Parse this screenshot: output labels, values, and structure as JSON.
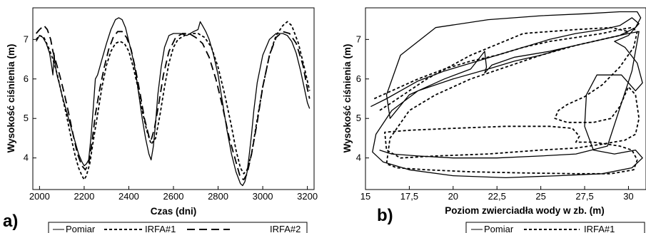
{
  "chart_data": [
    {
      "type": "line",
      "panel": "a)",
      "xlabel": "Czas (dni)",
      "ylabel": "Wysokość ciśnienia (m)",
      "xlim": [
        1970,
        3230
      ],
      "ylim": [
        3.2,
        7.8
      ],
      "xticks": [
        2000,
        2200,
        2400,
        2600,
        2800,
        3000,
        3200
      ],
      "yticks": [
        4,
        5,
        6,
        7
      ],
      "grid": false,
      "legend": "bottom",
      "series": [
        {
          "name": "Pomiar",
          "style": "solid",
          "x": [
            1985,
            2000,
            2015,
            2030,
            2045,
            2055,
            2060,
            2065,
            2070,
            2080,
            2090,
            2100,
            2115,
            2130,
            2145,
            2160,
            2175,
            2190,
            2200,
            2210,
            2220,
            2230,
            2240,
            2250,
            2260,
            2270,
            2280,
            2300,
            2320,
            2340,
            2355,
            2370,
            2385,
            2400,
            2415,
            2430,
            2445,
            2460,
            2475,
            2490,
            2500,
            2510,
            2520,
            2530,
            2545,
            2560,
            2580,
            2600,
            2630,
            2660,
            2690,
            2710,
            2720,
            2730,
            2745,
            2760,
            2780,
            2800,
            2820,
            2840,
            2860,
            2880,
            2900,
            2910,
            2920,
            2930,
            2940,
            2950,
            2960,
            2975,
            3000,
            3030,
            3060,
            3090,
            3110,
            3130,
            3150,
            3170,
            3185,
            3200,
            3210
          ],
          "y": [
            6.95,
            7.1,
            7.05,
            6.9,
            6.65,
            6.3,
            6.1,
            6.65,
            6.35,
            6.05,
            5.85,
            5.6,
            5.3,
            5.0,
            4.7,
            4.4,
            4.1,
            3.9,
            3.8,
            3.85,
            3.95,
            4.5,
            5.2,
            6.0,
            6.1,
            6.3,
            6.5,
            6.9,
            7.25,
            7.5,
            7.55,
            7.5,
            7.3,
            6.95,
            6.6,
            6.2,
            5.6,
            5.0,
            4.5,
            4.1,
            3.95,
            4.3,
            4.9,
            5.6,
            6.3,
            6.8,
            7.1,
            7.15,
            7.15,
            7.1,
            7.2,
            7.25,
            7.45,
            7.35,
            7.2,
            7.0,
            6.6,
            6.1,
            5.4,
            4.7,
            4.1,
            3.65,
            3.35,
            3.3,
            3.4,
            3.65,
            4.1,
            4.6,
            5.2,
            5.9,
            6.6,
            7.0,
            7.15,
            7.15,
            7.1,
            6.95,
            6.65,
            6.2,
            5.8,
            5.4,
            5.25
          ]
        },
        {
          "name": "IRFA#1",
          "style": "dotted",
          "x": [
            1985,
            2000,
            2020,
            2040,
            2060,
            2080,
            2100,
            2120,
            2140,
            2160,
            2175,
            2190,
            2200,
            2210,
            2225,
            2240,
            2260,
            2280,
            2300,
            2320,
            2340,
            2360,
            2380,
            2400,
            2420,
            2440,
            2460,
            2480,
            2500,
            2520,
            2540,
            2560,
            2580,
            2600,
            2620,
            2650,
            2680,
            2710,
            2740,
            2770,
            2800,
            2830,
            2860,
            2880,
            2900,
            2915,
            2930,
            2950,
            2970,
            3000,
            3030,
            3060,
            3090,
            3110,
            3130,
            3160,
            3190,
            3210
          ],
          "y": [
            7.0,
            7.1,
            7.05,
            6.8,
            6.5,
            6.1,
            5.6,
            5.1,
            4.55,
            4.05,
            3.75,
            3.55,
            3.45,
            3.55,
            3.85,
            4.4,
            5.1,
            5.8,
            6.35,
            6.7,
            6.9,
            6.95,
            6.9,
            6.7,
            6.3,
            5.8,
            5.2,
            4.7,
            4.35,
            4.5,
            5.1,
            5.8,
            6.4,
            6.8,
            7.0,
            7.1,
            7.15,
            7.15,
            7.05,
            6.8,
            6.3,
            5.6,
            4.8,
            4.2,
            3.75,
            3.6,
            3.7,
            4.1,
            4.8,
            5.8,
            6.6,
            7.1,
            7.35,
            7.45,
            7.35,
            6.9,
            6.2,
            5.7
          ]
        },
        {
          "name": "IRFA#2",
          "style": "dashed",
          "x": [
            1985,
            2000,
            2020,
            2035,
            2050,
            2060,
            2075,
            2090,
            2110,
            2130,
            2150,
            2170,
            2190,
            2205,
            2220,
            2235,
            2250,
            2270,
            2290,
            2310,
            2330,
            2350,
            2370,
            2390,
            2410,
            2430,
            2450,
            2470,
            2490,
            2500,
            2515,
            2535,
            2555,
            2580,
            2610,
            2640,
            2670,
            2700,
            2730,
            2760,
            2790,
            2820,
            2850,
            2880,
            2900,
            2915,
            2930,
            2950,
            2975,
            3000,
            3030,
            3060,
            3090,
            3120,
            3150,
            3180,
            3200,
            3210
          ],
          "y": [
            7.15,
            7.25,
            7.35,
            7.25,
            7.0,
            6.7,
            6.4,
            6.1,
            5.65,
            5.15,
            4.6,
            4.1,
            3.8,
            3.7,
            3.85,
            4.4,
            5.1,
            5.75,
            6.3,
            6.75,
            7.05,
            7.2,
            7.2,
            7.05,
            6.75,
            6.25,
            5.65,
            5.0,
            4.55,
            4.45,
            4.75,
            5.4,
            6.1,
            6.7,
            7.05,
            7.15,
            7.15,
            7.05,
            6.9,
            6.55,
            6.0,
            5.3,
            4.5,
            3.9,
            3.5,
            3.45,
            3.6,
            4.1,
            4.9,
            5.8,
            6.6,
            7.05,
            7.2,
            7.15,
            6.9,
            6.35,
            5.75,
            5.5
          ]
        }
      ],
      "legend_entries": [
        "Pomiar",
        "IRFA#1",
        "IRFA#2"
      ]
    },
    {
      "type": "line",
      "panel": "b)",
      "xlabel": "Poziom zwierciadła wody w zb. (m)",
      "ylabel": "Wysokość ciśnienia (m)",
      "xlim": [
        15,
        31
      ],
      "ylim": [
        3.2,
        7.8
      ],
      "xticks": [
        "15",
        "17,5",
        "20",
        "22,5",
        "25",
        "27,5",
        "30"
      ],
      "xtick_values": [
        15,
        17.5,
        20,
        22.5,
        25,
        27.5,
        30
      ],
      "yticks": [
        4,
        5,
        6,
        7
      ],
      "grid": false,
      "legend": "bottom",
      "series": [
        {
          "name": "Pomiar",
          "style": "solid",
          "x": [
            15.3,
            16.2,
            17.0,
            18.0,
            19.5,
            21.0,
            22.5,
            24.0,
            25.5,
            27.0,
            28.5,
            29.5,
            30.2,
            30.6,
            30.0,
            29.2,
            29.8,
            30.5,
            30.8,
            30.4,
            29.6,
            28.2,
            27.6,
            27.5,
            28.0,
            29.2,
            30.4,
            30.8,
            30.2,
            28.5,
            26.0,
            23.0,
            20.0,
            17.5,
            16.0,
            15.4,
            15.6,
            16.5,
            18.0,
            20.0,
            22.0,
            23.5,
            25.0,
            26.5,
            28.0,
            29.5,
            30.4,
            30.7,
            30.5,
            29.5,
            27.5,
            25.0,
            22.0,
            19.0,
            17.0,
            16.2,
            16.4,
            17.5,
            19.5,
            21.0,
            21.8,
            21.9,
            21.8,
            22.2,
            23.5,
            25.5,
            27.5,
            29.0,
            30.0,
            30.6,
            30.2,
            28.8,
            27.0,
            25.0,
            22.5,
            20.0,
            18.0,
            16.5,
            15.8
          ],
          "y": [
            5.3,
            5.5,
            5.7,
            5.95,
            6.2,
            6.4,
            6.6,
            6.8,
            7.0,
            7.15,
            7.25,
            7.35,
            7.55,
            7.4,
            7.1,
            6.95,
            6.8,
            6.4,
            5.9,
            5.7,
            6.1,
            6.1,
            5.6,
            4.8,
            4.2,
            4.1,
            4.2,
            4.0,
            3.75,
            3.6,
            3.55,
            3.5,
            3.55,
            3.7,
            3.9,
            4.15,
            4.6,
            5.2,
            5.7,
            6.0,
            6.25,
            6.45,
            6.6,
            6.8,
            6.95,
            7.1,
            7.3,
            7.55,
            7.7,
            7.7,
            7.65,
            7.6,
            7.5,
            7.3,
            6.6,
            5.6,
            5.0,
            5.6,
            6.0,
            6.25,
            6.7,
            6.3,
            6.15,
            6.35,
            6.55,
            6.7,
            6.9,
            7.05,
            7.15,
            7.2,
            6.2,
            4.3,
            4.1,
            4.05,
            4.0,
            4.0,
            4.05,
            4.1,
            4.2
          ]
        },
        {
          "name": "IRFA#1",
          "style": "dotted",
          "x": [
            15.5,
            16.5,
            18.0,
            19.5,
            21.0,
            22.5,
            24.0,
            25.5,
            27.0,
            28.5,
            29.5,
            30.2,
            30.5,
            30.3,
            29.5,
            28.5,
            27.5,
            26.5,
            26.0,
            25.8,
            26.5,
            28.0,
            29.0,
            29.5,
            29.8,
            30.0,
            30.4,
            30.6,
            30.4,
            29.8,
            28.5,
            27.0,
            25.0,
            22.0,
            19.0,
            17.0,
            16.2,
            16.1,
            17.5,
            20.0,
            23.0,
            25.5,
            26.8,
            27.2,
            27.0,
            28.0,
            29.5,
            30.2,
            30.5,
            30.3,
            29.0,
            27.0,
            24.0,
            21.0,
            18.5,
            16.8,
            16.2,
            16.4,
            17.5,
            19.0,
            21.0,
            23.0,
            25.0,
            27.0,
            28.5,
            29.5,
            30.0,
            29.0,
            27.0,
            24.0,
            21.0,
            18.5,
            16.5,
            15.8
          ],
          "y": [
            5.5,
            5.7,
            6.0,
            6.25,
            6.45,
            6.6,
            6.8,
            6.95,
            7.05,
            7.15,
            7.25,
            7.3,
            7.2,
            6.8,
            6.3,
            5.85,
            5.55,
            5.35,
            5.2,
            5.0,
            4.9,
            4.9,
            5.0,
            5.3,
            5.6,
            5.8,
            5.6,
            5.0,
            4.6,
            4.45,
            4.35,
            4.25,
            4.2,
            4.1,
            4.05,
            4.0,
            4.2,
            4.65,
            4.7,
            4.75,
            4.8,
            4.8,
            4.75,
            4.55,
            4.4,
            4.4,
            4.3,
            4.2,
            3.95,
            3.7,
            3.6,
            3.6,
            3.62,
            3.65,
            3.7,
            3.75,
            3.85,
            4.5,
            5.2,
            5.6,
            6.0,
            6.3,
            6.6,
            6.85,
            7.0,
            7.1,
            7.2,
            7.3,
            7.25,
            7.15,
            6.6,
            6.0,
            5.4,
            5.2
          ]
        }
      ],
      "legend_entries": [
        "Pomiar",
        "IRFA#1"
      ]
    }
  ]
}
